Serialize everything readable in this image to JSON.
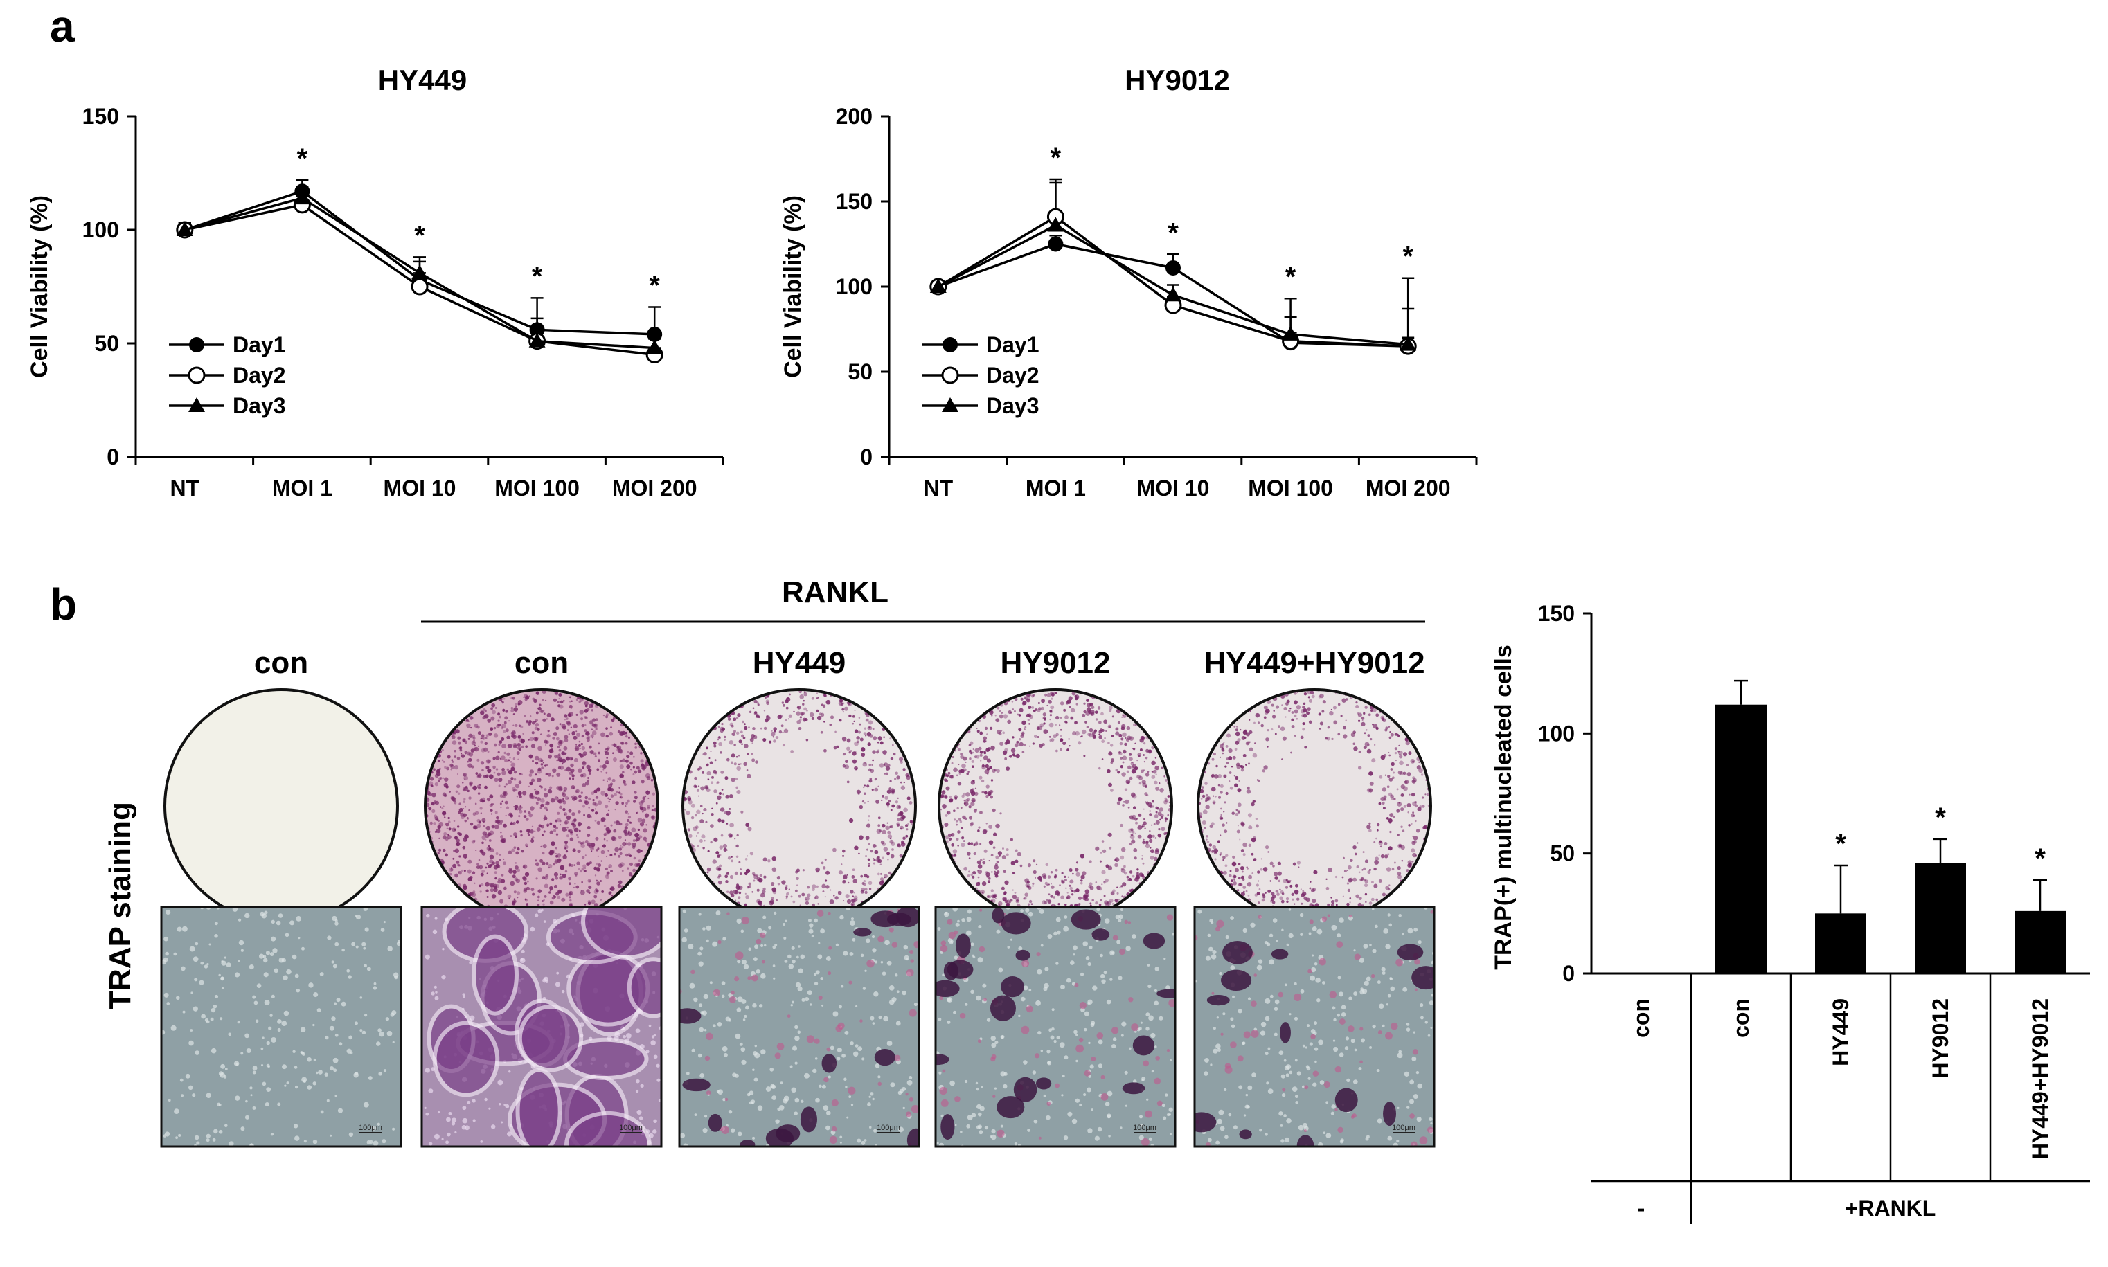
{
  "panels": {
    "a": "a",
    "b": "b"
  },
  "legend_markers": [
    "filled-circle",
    "open-circle",
    "filled-triangle"
  ],
  "chart_data": [
    {
      "type": "line",
      "title": "HY449",
      "xlabel": "",
      "ylabel": "Cell Viability (%)",
      "categories": [
        "NT",
        "MOI 1",
        "MOI 10",
        "MOI 100",
        "MOI 200"
      ],
      "ylim": [
        0,
        150
      ],
      "yticks": [
        0,
        50,
        100,
        150
      ],
      "legend_position": "bottom-left",
      "series": [
        {
          "name": "Day1",
          "marker": "filled-circle",
          "values": [
            100,
            117,
            78,
            56,
            54
          ],
          "errors": [
            3,
            5,
            8,
            5,
            12
          ]
        },
        {
          "name": "Day2",
          "marker": "open-circle",
          "values": [
            100,
            111,
            75,
            51,
            45
          ],
          "errors": [
            3,
            4,
            6,
            4,
            3
          ]
        },
        {
          "name": "Day3",
          "marker": "filled-triangle",
          "values": [
            100,
            114,
            81,
            51,
            48
          ],
          "errors": [
            3,
            5,
            7,
            19,
            4
          ]
        }
      ],
      "significance": [
        "",
        "*",
        "*",
        "*",
        "*"
      ]
    },
    {
      "type": "line",
      "title": "HY9012",
      "xlabel": "",
      "ylabel": "Cell Viability (%)",
      "categories": [
        "NT",
        "MOI 1",
        "MOI 10",
        "MOI 100",
        "MOI 200"
      ],
      "ylim": [
        0,
        200
      ],
      "yticks": [
        0,
        50,
        100,
        150,
        200
      ],
      "legend_position": "bottom-left",
      "series": [
        {
          "name": "Day1",
          "marker": "filled-circle",
          "values": [
            100,
            125,
            111,
            67,
            65
          ],
          "errors": [
            3,
            5,
            8,
            6,
            5
          ]
        },
        {
          "name": "Day2",
          "marker": "open-circle",
          "values": [
            100,
            141,
            89,
            68,
            65
          ],
          "errors": [
            3,
            22,
            5,
            14,
            22
          ]
        },
        {
          "name": "Day3",
          "marker": "filled-triangle",
          "values": [
            100,
            136,
            95,
            72,
            66
          ],
          "errors": [
            3,
            25,
            6,
            21,
            39
          ]
        }
      ],
      "significance": [
        "",
        "*",
        "*",
        "*",
        "*"
      ]
    },
    {
      "type": "bar",
      "title": "",
      "xlabel": "",
      "ylabel": "TRAP(+) multinucleated cells",
      "categories": [
        "con",
        "con",
        "HY449",
        "HY9012",
        "HY449+HY9012"
      ],
      "values": [
        0,
        112,
        25,
        46,
        26
      ],
      "errors": [
        0,
        10,
        20,
        10,
        13
      ],
      "ylim": [
        0,
        150
      ],
      "yticks": [
        0,
        50,
        100,
        150
      ],
      "significance": [
        "",
        "",
        "*",
        "*",
        "*"
      ],
      "group_labels": [
        "-",
        "+RANKL"
      ]
    }
  ],
  "staining": {
    "rankl_label": "RANKL",
    "row_label": "TRAP staining",
    "conditions": [
      "con",
      "con",
      "HY449",
      "HY9012",
      "HY449+HY9012"
    ],
    "scale_bar": "100μm",
    "colors": {
      "stain": "#7a2a6a",
      "well_bg": "#f3f1ea",
      "micro_bg": "#8d9ea3"
    }
  }
}
